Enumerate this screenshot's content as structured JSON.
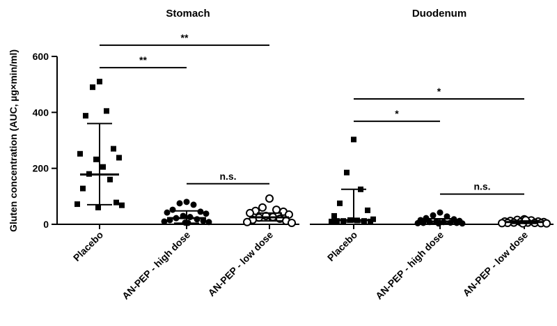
{
  "chart_data": {
    "type": "scatter",
    "ylabel": "Gluten concentration  (AUC, µg×min/ml)",
    "ylim": [
      0,
      600
    ],
    "yticks": [
      "0",
      "200",
      "400",
      "600"
    ],
    "categories": [
      "Placebo",
      "AN-PEP - high dose",
      "AN-PEP - low dose"
    ],
    "panels": [
      {
        "title": "Stomach",
        "groups": [
          {
            "name": "Placebo",
            "marker": "filled-square",
            "mean": 178,
            "sd_low": 70,
            "sd_high": 360,
            "points": [
              510,
              490,
              405,
              388,
              270,
              252,
              238,
              232,
              205,
              180,
              160,
              128,
              78,
              72,
              68,
              60
            ]
          },
          {
            "name": "AN-PEP - high dose",
            "marker": "filled-circle",
            "mean": 22,
            "sd_low": 4,
            "sd_high": 48,
            "points": [
              80,
              75,
              70,
              52,
              45,
              42,
              38,
              30,
              26,
              22,
              18,
              15,
              12,
              10,
              8,
              6,
              5
            ]
          },
          {
            "name": "AN-PEP - low dose",
            "marker": "open-circle",
            "mean": 25,
            "sd_low": 12,
            "sd_high": 40,
            "points": [
              92,
              60,
              52,
              48,
              45,
              40,
              35,
              30,
              26,
              24,
              20,
              16,
              12,
              8,
              5
            ]
          }
        ],
        "brackets": [
          {
            "from": 0,
            "to": 2,
            "label": "**",
            "y": 640
          },
          {
            "from": 0,
            "to": 1,
            "label": "**",
            "y": 560
          },
          {
            "from": 1,
            "to": 2,
            "label": "n.s.",
            "y": 145
          }
        ]
      },
      {
        "title": "Duodenum",
        "groups": [
          {
            "name": "Placebo",
            "marker": "filled-square",
            "mean": 15,
            "sd_low": 8,
            "sd_high": 125,
            "points": [
              303,
              185,
              125,
              75,
              50,
              30,
              18,
              15,
              14,
              12,
              12,
              12,
              10,
              10
            ]
          },
          {
            "name": "AN-PEP - high dose",
            "marker": "filled-circle",
            "mean": 10,
            "sd_low": 3,
            "sd_high": 20,
            "points": [
              42,
              32,
              28,
              22,
              18,
              15,
              12,
              10,
              8,
              8,
              6,
              5,
              5,
              4,
              3,
              3
            ]
          },
          {
            "name": "AN-PEP - low dose",
            "marker": "open-circle",
            "mean": 8,
            "sd_low": 3,
            "sd_high": 12,
            "points": [
              18,
              16,
              14,
              12,
              10,
              10,
              8,
              8,
              6,
              6,
              5,
              5,
              4,
              4,
              3,
              3,
              15
            ]
          }
        ],
        "brackets": [
          {
            "from": 0,
            "to": 2,
            "label": "*",
            "y": 448
          },
          {
            "from": 0,
            "to": 1,
            "label": "*",
            "y": 368
          },
          {
            "from": 1,
            "to": 2,
            "label": "n.s.",
            "y": 108
          }
        ]
      }
    ]
  }
}
